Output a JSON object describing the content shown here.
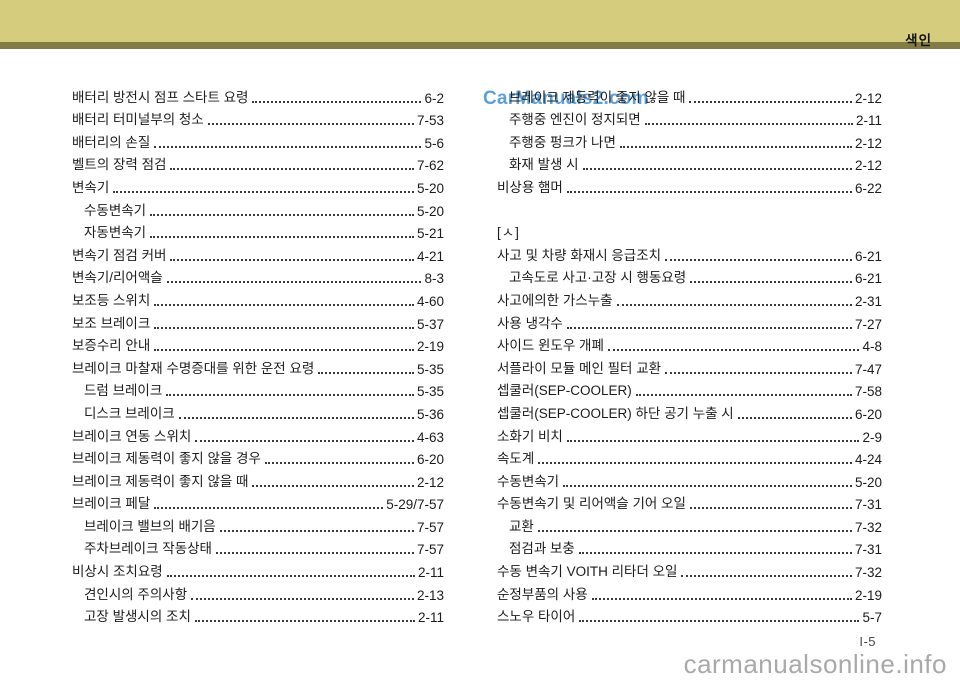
{
  "header": {
    "title": "색인"
  },
  "footer": {
    "page_number": "I-5"
  },
  "watermarks": {
    "top": "CarManuals2.com",
    "bottom": "carmanualsonline.info"
  },
  "colors": {
    "header_band": "#d5cc7d",
    "header_rule": "#837d45",
    "text": "#1c1c1c",
    "watermark_top": "#4f99d5",
    "watermark_bottom": "#a9a9a9"
  },
  "index": {
    "left_column": [
      {
        "type": "entry",
        "indent": 0,
        "label": "배터리 방전시 점프 스타트 요령",
        "page": "6-2"
      },
      {
        "type": "entry",
        "indent": 0,
        "label": "배터리 터미널부의 청소",
        "page": "7-53"
      },
      {
        "type": "entry",
        "indent": 0,
        "label": "배터리의 손질",
        "page": "5-6"
      },
      {
        "type": "entry",
        "indent": 0,
        "label": "벨트의 장력 점검",
        "page": "7-62"
      },
      {
        "type": "entry",
        "indent": 0,
        "label": "변속기",
        "page": "5-20"
      },
      {
        "type": "entry",
        "indent": 1,
        "label": "수동변속기",
        "page": "5-20"
      },
      {
        "type": "entry",
        "indent": 1,
        "label": "자동변속기",
        "page": "5-21"
      },
      {
        "type": "entry",
        "indent": 0,
        "label": "변속기 점검 커버",
        "page": "4-21"
      },
      {
        "type": "entry",
        "indent": 0,
        "label": "변속기/리어액슬",
        "page": "8-3"
      },
      {
        "type": "entry",
        "indent": 0,
        "label": "보조등 스위치",
        "page": "4-60"
      },
      {
        "type": "entry",
        "indent": 0,
        "label": "보조 브레이크",
        "page": "5-37"
      },
      {
        "type": "entry",
        "indent": 0,
        "label": "보증수리 안내",
        "page": "2-19"
      },
      {
        "type": "entry",
        "indent": 0,
        "label": "브레이크 마찰재 수명증대를 위한 운전 요령",
        "page": "5-35"
      },
      {
        "type": "entry",
        "indent": 1,
        "label": "드럼 브레이크",
        "page": "5-35"
      },
      {
        "type": "entry",
        "indent": 1,
        "label": "디스크 브레이크",
        "page": "5-36"
      },
      {
        "type": "entry",
        "indent": 0,
        "label": "브레이크 연동 스위치",
        "page": "4-63"
      },
      {
        "type": "entry",
        "indent": 0,
        "label": "브레이크 제동력이 좋지 않을 경우",
        "page": "6-20"
      },
      {
        "type": "entry",
        "indent": 0,
        "label": "브레이크 제동력이 좋지 않을 때",
        "page": "2-12"
      },
      {
        "type": "entry",
        "indent": 0,
        "label": "브레이크 페달",
        "page": "5-29/7-57"
      },
      {
        "type": "entry",
        "indent": 1,
        "label": "브레이크 밸브의 배기음",
        "page": "7-57"
      },
      {
        "type": "entry",
        "indent": 1,
        "label": "주차브레이크 작동상태",
        "page": "7-57"
      },
      {
        "type": "entry",
        "indent": 0,
        "label": "비상시 조치요령",
        "page": "2-11"
      },
      {
        "type": "entry",
        "indent": 1,
        "label": "견인시의 주의사항",
        "page": "2-13"
      },
      {
        "type": "entry",
        "indent": 1,
        "label": "고장 발생시의 조치",
        "page": "2-11"
      }
    ],
    "right_column": [
      {
        "type": "entry",
        "indent": 1,
        "label": "브레이크 제동력이 좋지 않을 때",
        "page": "2-12"
      },
      {
        "type": "entry",
        "indent": 1,
        "label": "주행중 엔진이 정지되면",
        "page": "2-11"
      },
      {
        "type": "entry",
        "indent": 1,
        "label": "주행중 펑크가 나면",
        "page": "2-12"
      },
      {
        "type": "entry",
        "indent": 1,
        "label": "화재 발생 시",
        "page": "2-12"
      },
      {
        "type": "entry",
        "indent": 0,
        "label": "비상용 햄머",
        "page": "6-22"
      },
      {
        "type": "blank"
      },
      {
        "type": "section",
        "indent": 0,
        "label": "[ㅅ]"
      },
      {
        "type": "entry",
        "indent": 0,
        "label": "사고 및 차량 화재시 응급조치",
        "page": "6-21"
      },
      {
        "type": "entry",
        "indent": 1,
        "label": "고속도로 사고·고장 시 행동요령",
        "page": "6-21"
      },
      {
        "type": "entry",
        "indent": 0,
        "label": "사고에의한 가스누출",
        "page": "2-31"
      },
      {
        "type": "entry",
        "indent": 0,
        "label": "사용 냉각수",
        "page": "7-27"
      },
      {
        "type": "entry",
        "indent": 0,
        "label": "사이드 윈도우 개폐",
        "page": "4-8"
      },
      {
        "type": "entry",
        "indent": 0,
        "label": "서플라이 모듈 메인 필터 교환",
        "page": "7-47"
      },
      {
        "type": "entry",
        "indent": 0,
        "label": "셉쿨러(SEP-COOLER)",
        "page": "7-58"
      },
      {
        "type": "entry",
        "indent": 0,
        "label": "셉쿨러(SEP-COOLER) 하단 공기 누출 시",
        "page": "6-20"
      },
      {
        "type": "entry",
        "indent": 0,
        "label": "소화기 비치",
        "page": "2-9"
      },
      {
        "type": "entry",
        "indent": 0,
        "label": "속도계",
        "page": "4-24"
      },
      {
        "type": "entry",
        "indent": 0,
        "label": "수동변속기",
        "page": "5-20"
      },
      {
        "type": "entry",
        "indent": 0,
        "label": "수동변속기 및 리어액슬 기어 오일",
        "page": "7-31"
      },
      {
        "type": "entry",
        "indent": 1,
        "label": "교환",
        "page": "7-32"
      },
      {
        "type": "entry",
        "indent": 1,
        "label": "점검과 보충",
        "page": "7-31"
      },
      {
        "type": "entry",
        "indent": 0,
        "label": "수동 변속기 VOITH 리타더 오일",
        "page": "7-32"
      },
      {
        "type": "entry",
        "indent": 0,
        "label": "순정부품의 사용",
        "page": "2-19"
      },
      {
        "type": "entry",
        "indent": 0,
        "label": "스노우 타이어",
        "page": "5-7"
      }
    ]
  }
}
